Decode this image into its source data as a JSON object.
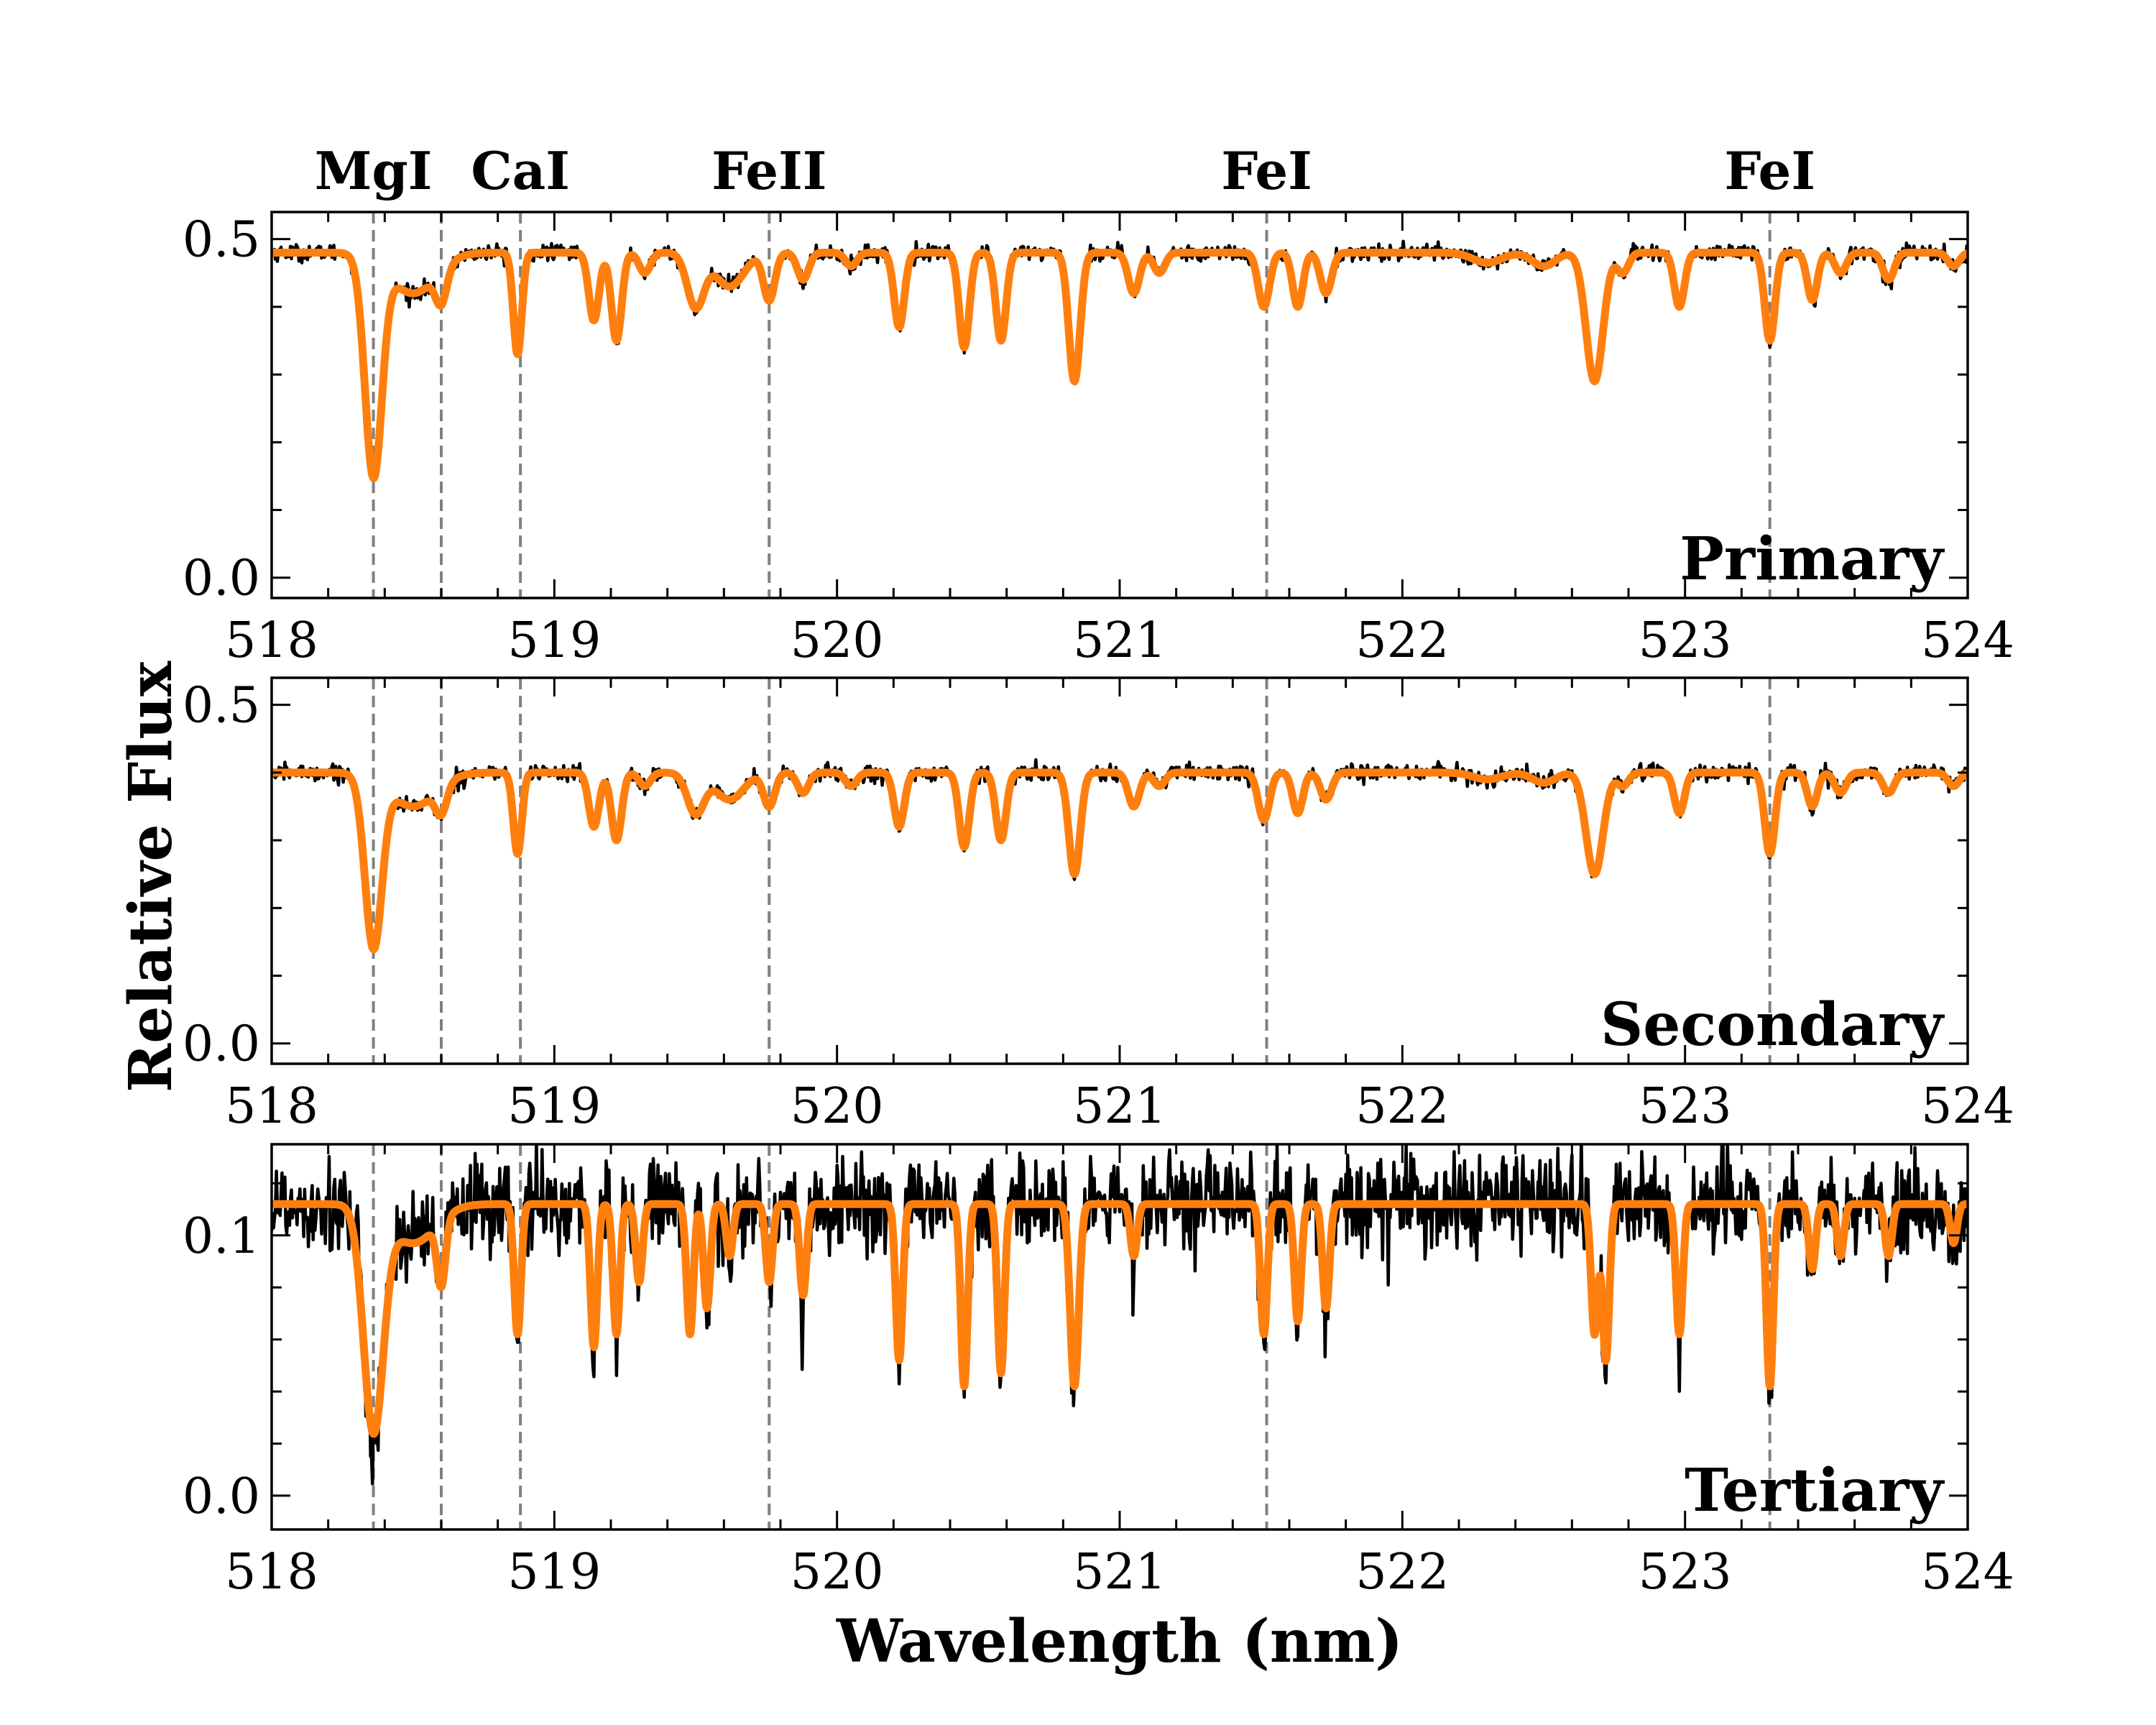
{
  "figure": {
    "xlabel": "Wavelength (nm)",
    "ylabel": "Relative Flux",
    "line_labels": [
      "MgI",
      "CaI",
      "FeII",
      "FeI",
      "FeI"
    ]
  },
  "chart_data": [
    {
      "type": "line",
      "panel_label": "Primary",
      "xlim": [
        518,
        524
      ],
      "ylim": [
        -0.03,
        0.54
      ],
      "x_ticks": [
        518,
        519,
        520,
        521,
        522,
        523,
        524
      ],
      "y_ticks": [
        0.0,
        0.5
      ],
      "grid": false,
      "continuum": 0.48,
      "series": [
        {
          "color": "#000000",
          "role": "observed",
          "noise": 0.006
        },
        {
          "color": "#ff7f0e",
          "role": "model"
        }
      ],
      "absorption_lines": [
        {
          "x": 518.36,
          "depth": 0.32,
          "width": 0.03
        },
        {
          "x": 518.5,
          "depth": 0.06,
          "width": 0.08
        },
        {
          "x": 518.6,
          "depth": 0.05,
          "width": 0.02
        },
        {
          "x": 518.87,
          "depth": 0.15,
          "width": 0.015
        },
        {
          "x": 519.14,
          "depth": 0.1,
          "width": 0.018
        },
        {
          "x": 519.22,
          "depth": 0.13,
          "width": 0.018
        },
        {
          "x": 519.32,
          "depth": 0.03,
          "width": 0.02
        },
        {
          "x": 519.5,
          "depth": 0.08,
          "width": 0.03
        },
        {
          "x": 519.62,
          "depth": 0.05,
          "width": 0.05
        },
        {
          "x": 519.76,
          "depth": 0.07,
          "width": 0.02
        },
        {
          "x": 519.88,
          "depth": 0.04,
          "width": 0.02
        },
        {
          "x": 520.05,
          "depth": 0.02,
          "width": 0.02
        },
        {
          "x": 520.22,
          "depth": 0.11,
          "width": 0.018
        },
        {
          "x": 520.45,
          "depth": 0.14,
          "width": 0.018
        },
        {
          "x": 520.58,
          "depth": 0.13,
          "width": 0.018
        },
        {
          "x": 520.84,
          "depth": 0.19,
          "width": 0.02
        },
        {
          "x": 521.05,
          "depth": 0.06,
          "width": 0.02
        },
        {
          "x": 521.14,
          "depth": 0.03,
          "width": 0.02
        },
        {
          "x": 521.51,
          "depth": 0.08,
          "width": 0.02
        },
        {
          "x": 521.63,
          "depth": 0.08,
          "width": 0.018
        },
        {
          "x": 521.73,
          "depth": 0.06,
          "width": 0.02
        },
        {
          "x": 522.3,
          "depth": 0.015,
          "width": 0.05
        },
        {
          "x": 522.5,
          "depth": 0.02,
          "width": 0.04
        },
        {
          "x": 522.68,
          "depth": 0.19,
          "width": 0.03
        },
        {
          "x": 522.78,
          "depth": 0.03,
          "width": 0.02
        },
        {
          "x": 522.98,
          "depth": 0.08,
          "width": 0.018
        },
        {
          "x": 523.3,
          "depth": 0.13,
          "width": 0.018
        },
        {
          "x": 523.45,
          "depth": 0.07,
          "width": 0.018
        },
        {
          "x": 523.55,
          "depth": 0.03,
          "width": 0.02
        },
        {
          "x": 523.72,
          "depth": 0.04,
          "width": 0.02
        },
        {
          "x": 523.95,
          "depth": 0.02,
          "width": 0.02
        }
      ]
    },
    {
      "type": "line",
      "panel_label": "Secondary",
      "xlim": [
        518,
        524
      ],
      "ylim": [
        -0.03,
        0.54
      ],
      "x_ticks": [
        518,
        519,
        520,
        521,
        522,
        523,
        524
      ],
      "y_ticks": [
        0.0,
        0.5
      ],
      "grid": false,
      "continuum": 0.4,
      "series": [
        {
          "color": "#000000",
          "role": "observed",
          "noise": 0.006
        },
        {
          "color": "#ff7f0e",
          "role": "model"
        }
      ],
      "absorption_lines": [
        {
          "x": 518.36,
          "depth": 0.25,
          "width": 0.03
        },
        {
          "x": 518.5,
          "depth": 0.05,
          "width": 0.08
        },
        {
          "x": 518.6,
          "depth": 0.04,
          "width": 0.02
        },
        {
          "x": 518.87,
          "depth": 0.12,
          "width": 0.015
        },
        {
          "x": 519.14,
          "depth": 0.08,
          "width": 0.018
        },
        {
          "x": 519.22,
          "depth": 0.1,
          "width": 0.018
        },
        {
          "x": 519.32,
          "depth": 0.02,
          "width": 0.02
        },
        {
          "x": 519.5,
          "depth": 0.06,
          "width": 0.03
        },
        {
          "x": 519.62,
          "depth": 0.04,
          "width": 0.05
        },
        {
          "x": 519.76,
          "depth": 0.05,
          "width": 0.02
        },
        {
          "x": 519.88,
          "depth": 0.03,
          "width": 0.02
        },
        {
          "x": 520.05,
          "depth": 0.02,
          "width": 0.02
        },
        {
          "x": 520.22,
          "depth": 0.08,
          "width": 0.018
        },
        {
          "x": 520.45,
          "depth": 0.11,
          "width": 0.018
        },
        {
          "x": 520.58,
          "depth": 0.1,
          "width": 0.018
        },
        {
          "x": 520.84,
          "depth": 0.15,
          "width": 0.02
        },
        {
          "x": 521.05,
          "depth": 0.05,
          "width": 0.02
        },
        {
          "x": 521.14,
          "depth": 0.02,
          "width": 0.02
        },
        {
          "x": 521.51,
          "depth": 0.07,
          "width": 0.02
        },
        {
          "x": 521.63,
          "depth": 0.06,
          "width": 0.018
        },
        {
          "x": 521.73,
          "depth": 0.04,
          "width": 0.02
        },
        {
          "x": 522.3,
          "depth": 0.01,
          "width": 0.05
        },
        {
          "x": 522.5,
          "depth": 0.015,
          "width": 0.04
        },
        {
          "x": 522.68,
          "depth": 0.15,
          "width": 0.03
        },
        {
          "x": 522.78,
          "depth": 0.02,
          "width": 0.02
        },
        {
          "x": 522.98,
          "depth": 0.06,
          "width": 0.018
        },
        {
          "x": 523.3,
          "depth": 0.12,
          "width": 0.018
        },
        {
          "x": 523.45,
          "depth": 0.05,
          "width": 0.018
        },
        {
          "x": 523.55,
          "depth": 0.03,
          "width": 0.02
        },
        {
          "x": 523.72,
          "depth": 0.03,
          "width": 0.02
        },
        {
          "x": 523.95,
          "depth": 0.02,
          "width": 0.02
        }
      ]
    },
    {
      "type": "line",
      "panel_label": "Tertiary",
      "xlim": [
        518,
        524
      ],
      "ylim": [
        -0.013,
        0.135
      ],
      "x_ticks": [
        518,
        519,
        520,
        521,
        522,
        523,
        524
      ],
      "y_ticks": [
        0.0,
        0.1
      ],
      "grid": false,
      "continuum": 0.112,
      "series": [
        {
          "color": "#000000",
          "role": "observed",
          "noise": 0.009
        },
        {
          "color": "#ff7f0e",
          "role": "model"
        }
      ],
      "absorption_lines": [
        {
          "x": 518.36,
          "depth": 0.085,
          "width": 0.035
        },
        {
          "x": 518.5,
          "depth": 0.015,
          "width": 0.08
        },
        {
          "x": 518.6,
          "depth": 0.025,
          "width": 0.015
        },
        {
          "x": 518.87,
          "depth": 0.05,
          "width": 0.012
        },
        {
          "x": 519.14,
          "depth": 0.055,
          "width": 0.012
        },
        {
          "x": 519.22,
          "depth": 0.05,
          "width": 0.012
        },
        {
          "x": 519.3,
          "depth": 0.03,
          "width": 0.012
        },
        {
          "x": 519.48,
          "depth": 0.05,
          "width": 0.012
        },
        {
          "x": 519.54,
          "depth": 0.04,
          "width": 0.012
        },
        {
          "x": 519.62,
          "depth": 0.02,
          "width": 0.012
        },
        {
          "x": 519.76,
          "depth": 0.03,
          "width": 0.012
        },
        {
          "x": 519.88,
          "depth": 0.035,
          "width": 0.012
        },
        {
          "x": 520.22,
          "depth": 0.06,
          "width": 0.012
        },
        {
          "x": 520.45,
          "depth": 0.07,
          "width": 0.012
        },
        {
          "x": 520.58,
          "depth": 0.065,
          "width": 0.012
        },
        {
          "x": 520.84,
          "depth": 0.07,
          "width": 0.015
        },
        {
          "x": 521.05,
          "depth": 0.02,
          "width": 0.012
        },
        {
          "x": 521.51,
          "depth": 0.05,
          "width": 0.012
        },
        {
          "x": 521.63,
          "depth": 0.045,
          "width": 0.012
        },
        {
          "x": 521.73,
          "depth": 0.04,
          "width": 0.012
        },
        {
          "x": 522.68,
          "depth": 0.05,
          "width": 0.012
        },
        {
          "x": 522.72,
          "depth": 0.06,
          "width": 0.012
        },
        {
          "x": 522.98,
          "depth": 0.05,
          "width": 0.012
        },
        {
          "x": 523.3,
          "depth": 0.07,
          "width": 0.012
        },
        {
          "x": 523.45,
          "depth": 0.025,
          "width": 0.012
        },
        {
          "x": 523.55,
          "depth": 0.02,
          "width": 0.012
        },
        {
          "x": 523.72,
          "depth": 0.02,
          "width": 0.012
        },
        {
          "x": 523.95,
          "depth": 0.015,
          "width": 0.012
        }
      ]
    }
  ],
  "marker_lines": {
    "color": "#808080",
    "wavelengths": [
      518.36,
      518.6,
      518.88,
      519.76,
      521.52,
      523.3
    ]
  },
  "line_label_positions": [
    518.36,
    518.88,
    519.76,
    521.52,
    523.3
  ]
}
